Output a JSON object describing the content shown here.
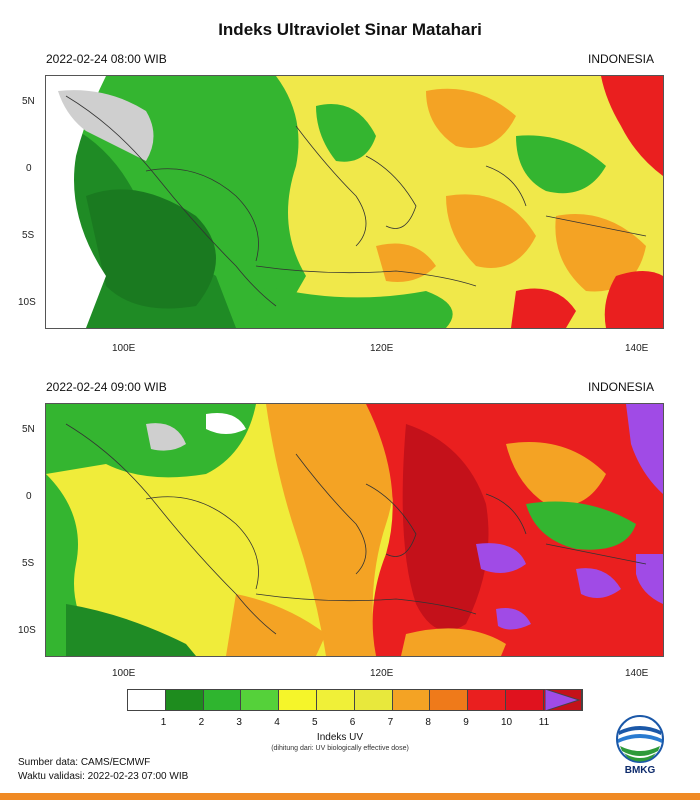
{
  "title": "Indeks Ultraviolet Sinar Matahari",
  "panels": [
    {
      "datetime": "2022-02-24  08:00 WIB",
      "region": "INDONESIA",
      "lat_labels": [
        "5N",
        "0",
        "5S",
        "10S"
      ],
      "lon_labels": [
        "100E",
        "120E",
        "140E"
      ]
    },
    {
      "datetime": "2022-02-24  09:00 WIB",
      "region": "INDONESIA",
      "lat_labels": [
        "5N",
        "0",
        "5S",
        "10S"
      ],
      "lon_labels": [
        "100E",
        "120E",
        "140E"
      ]
    }
  ],
  "legend": {
    "title": "Indeks UV",
    "subtitle": "(dihitung dari: UV biologically effective dose)",
    "levels": [
      "1",
      "2",
      "3",
      "4",
      "5",
      "6",
      "7",
      "8",
      "9",
      "10",
      "11"
    ],
    "colors": [
      "#ffffff",
      "#1e8c1e",
      "#2fb52f",
      "#55d13a",
      "#f5f52a",
      "#f0f038",
      "#e8e83c",
      "#f4a324",
      "#ef7a1a",
      "#ea1f1f",
      "#e0121e",
      "#c4111a"
    ],
    "extend_color": "#a04be6"
  },
  "footer": {
    "source": "Sumber data: CAMS/ECMWF",
    "validity": "Waktu validasi: 2022-02-23 07:00 WIB"
  },
  "logo": {
    "text": "BMKG",
    "icon": "bmkg-logo-icon"
  }
}
